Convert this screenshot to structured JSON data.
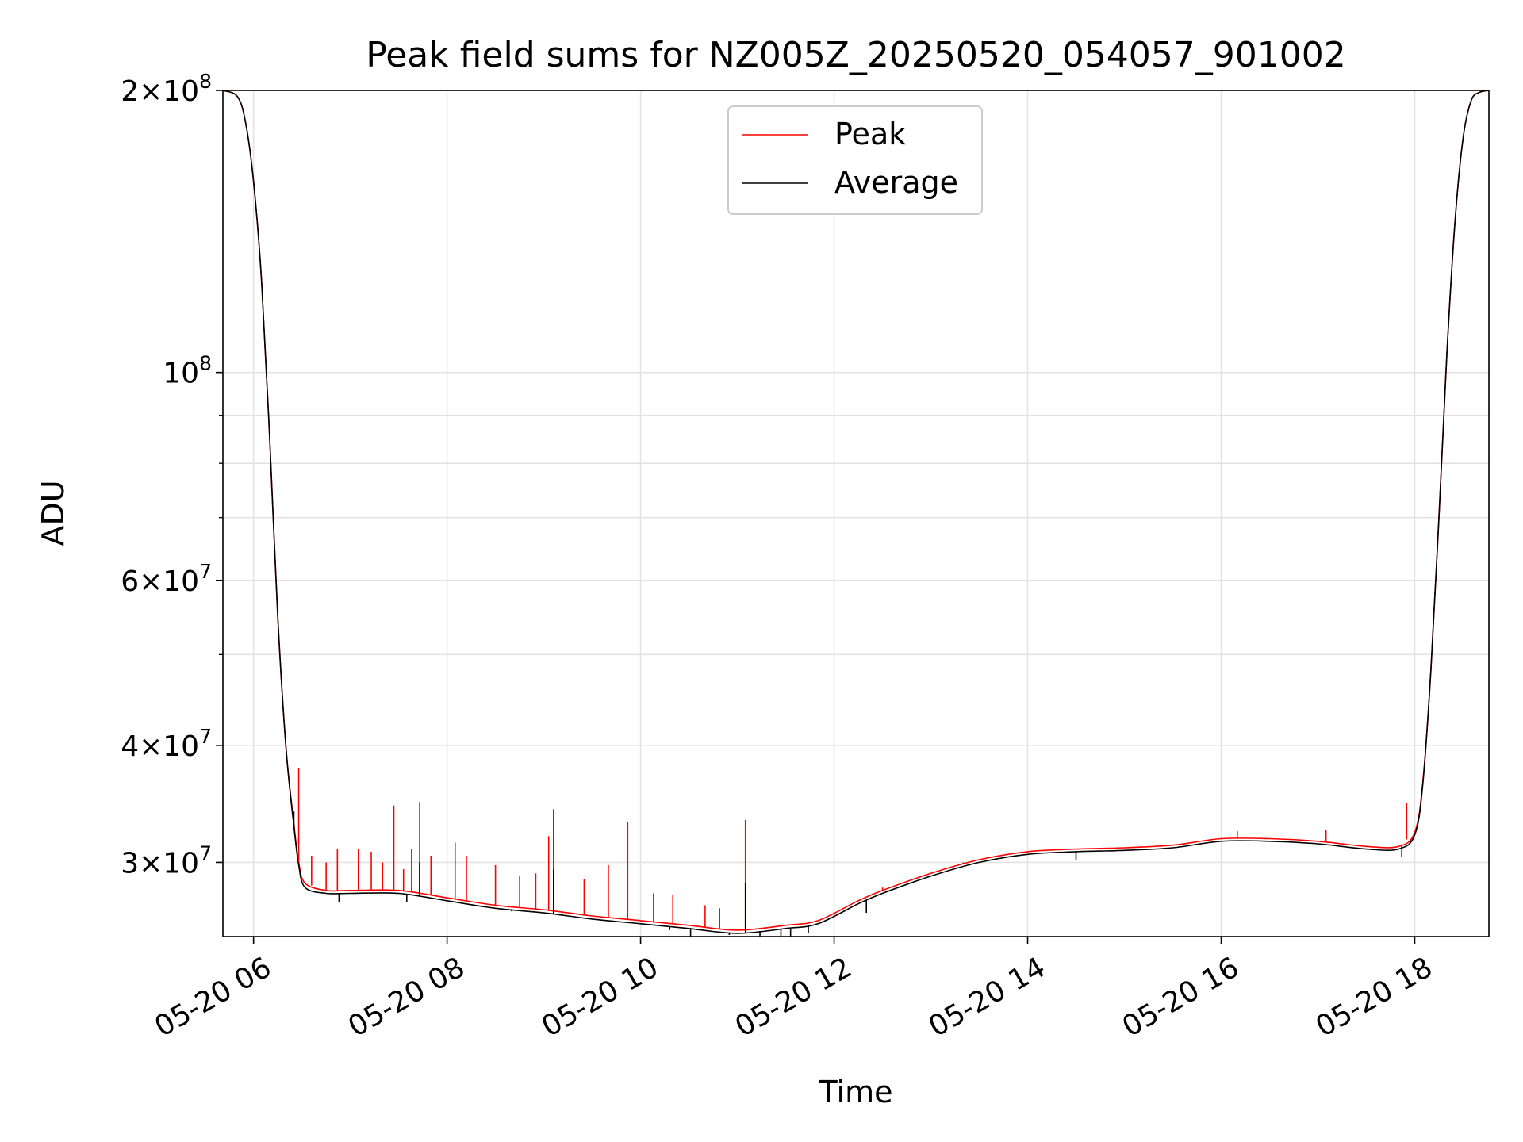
{
  "chart_data": {
    "type": "line",
    "title": "Peak field sums for NZ005Z_20250520_054057_901002",
    "xlabel": "Time",
    "ylabel": "ADU",
    "x_scale": "time",
    "y_scale": "log",
    "xlim": [
      "2025-05-20 05:41",
      "2025-05-20 18:46"
    ],
    "ylim": [
      25000000,
      200000000
    ],
    "grid": true,
    "legend_position": "top-center",
    "x_tick_labels": [
      "05-20 06",
      "05-20 08",
      "05-20 10",
      "05-20 12",
      "05-20 14",
      "05-20 16",
      "05-20 18"
    ],
    "x_ticks": [
      "2025-05-20 06:00",
      "2025-05-20 08:00",
      "2025-05-20 10:00",
      "2025-05-20 12:00",
      "2025-05-20 14:00",
      "2025-05-20 16:00",
      "2025-05-20 18:00"
    ],
    "y_tick_labels": [
      {
        "value": 30000000,
        "mantissa": "3",
        "exp": "7"
      },
      {
        "value": 40000000,
        "mantissa": "4",
        "exp": "7"
      },
      {
        "value": 60000000,
        "mantissa": "6",
        "exp": "7"
      },
      {
        "value": 100000000,
        "mantissa": "",
        "exp": "8"
      },
      {
        "value": 200000000,
        "mantissa": "2",
        "exp": "8"
      }
    ],
    "y_minor_ticks": [
      50000000,
      70000000,
      80000000,
      90000000
    ],
    "series": [
      {
        "name": "Peak",
        "color": "#ff0000",
        "x": [
          "2025-05-20 05:41",
          "2025-05-20 05:50",
          "2025-05-20 05:55",
          "2025-05-20 06:00",
          "2025-05-20 06:05",
          "2025-05-20 06:10",
          "2025-05-20 06:15",
          "2025-05-20 06:20",
          "2025-05-20 06:25",
          "2025-05-20 06:28",
          "2025-05-20 06:32",
          "2025-05-20 06:45",
          "2025-05-20 07:00",
          "2025-05-20 07:30",
          "2025-05-20 08:00",
          "2025-05-20 08:30",
          "2025-05-20 09:00",
          "2025-05-20 09:30",
          "2025-05-20 10:00",
          "2025-05-20 10:30",
          "2025-05-20 11:00",
          "2025-05-20 11:30",
          "2025-05-20 11:50",
          "2025-05-20 12:15",
          "2025-05-20 12:30",
          "2025-05-20 13:00",
          "2025-05-20 13:30",
          "2025-05-20 14:00",
          "2025-05-20 14:30",
          "2025-05-20 15:00",
          "2025-05-20 15:30",
          "2025-05-20 16:00",
          "2025-05-20 16:30",
          "2025-05-20 17:00",
          "2025-05-20 17:30",
          "2025-05-20 17:50",
          "2025-05-20 18:00",
          "2025-05-20 18:05",
          "2025-05-20 18:10",
          "2025-05-20 18:15",
          "2025-05-20 18:20",
          "2025-05-20 18:25",
          "2025-05-20 18:30",
          "2025-05-20 18:35",
          "2025-05-20 18:40",
          "2025-05-20 18:46"
        ],
        "y": [
          200000000,
          197000000,
          185000000,
          160000000,
          125000000,
          85000000,
          55000000,
          40000000,
          33000000,
          30000000,
          28500000,
          28000000,
          28000000,
          28000000,
          27500000,
          27000000,
          26700000,
          26300000,
          26000000,
          25700000,
          25400000,
          25700000,
          26000000,
          27300000,
          28000000,
          29200000,
          30200000,
          30800000,
          31000000,
          31100000,
          31300000,
          31800000,
          31800000,
          31600000,
          31200000,
          31200000,
          32300000,
          36500000,
          48000000,
          70000000,
          105000000,
          145000000,
          178000000,
          195000000,
          199000000,
          200000000
        ]
      },
      {
        "name": "Average",
        "color": "#000000",
        "x": [
          "2025-05-20 05:41",
          "2025-05-20 05:50",
          "2025-05-20 05:55",
          "2025-05-20 06:00",
          "2025-05-20 06:05",
          "2025-05-20 06:10",
          "2025-05-20 06:15",
          "2025-05-20 06:20",
          "2025-05-20 06:25",
          "2025-05-20 06:28",
          "2025-05-20 06:32",
          "2025-05-20 06:45",
          "2025-05-20 07:00",
          "2025-05-20 07:30",
          "2025-05-20 08:00",
          "2025-05-20 08:30",
          "2025-05-20 09:00",
          "2025-05-20 09:30",
          "2025-05-20 10:00",
          "2025-05-20 10:30",
          "2025-05-20 11:00",
          "2025-05-20 11:30",
          "2025-05-20 11:50",
          "2025-05-20 12:15",
          "2025-05-20 12:30",
          "2025-05-20 13:00",
          "2025-05-20 13:30",
          "2025-05-20 14:00",
          "2025-05-20 14:30",
          "2025-05-20 15:00",
          "2025-05-20 15:30",
          "2025-05-20 16:00",
          "2025-05-20 16:30",
          "2025-05-20 17:00",
          "2025-05-20 17:30",
          "2025-05-20 17:50",
          "2025-05-20 18:00",
          "2025-05-20 18:05",
          "2025-05-20 18:10",
          "2025-05-20 18:15",
          "2025-05-20 18:20",
          "2025-05-20 18:25",
          "2025-05-20 18:30",
          "2025-05-20 18:35",
          "2025-05-20 18:40",
          "2025-05-20 18:46"
        ],
        "y": [
          200000000,
          197000000,
          185000000,
          160000000,
          125000000,
          85000000,
          55000000,
          40000000,
          32800000,
          29800000,
          28200000,
          27800000,
          27800000,
          27800000,
          27300000,
          26800000,
          26500000,
          26100000,
          25800000,
          25500000,
          25200000,
          25500000,
          25800000,
          27100000,
          27800000,
          29000000,
          30000000,
          30600000,
          30800000,
          30900000,
          31100000,
          31600000,
          31600000,
          31400000,
          31000000,
          31000000,
          32100000,
          36300000,
          48000000,
          70000000,
          105000000,
          145000000,
          178000000,
          195000000,
          199000000,
          200000000
        ]
      }
    ],
    "spikes": [
      {
        "series": "Peak",
        "x": "2025-05-20 06:28",
        "y": 37800000
      },
      {
        "series": "Peak",
        "x": "2025-05-20 06:36",
        "y": 30500000
      },
      {
        "series": "Peak",
        "x": "2025-05-20 06:45",
        "y": 30000000
      },
      {
        "series": "Peak",
        "x": "2025-05-20 06:52",
        "y": 31000000
      },
      {
        "series": "Peak",
        "x": "2025-05-20 07:05",
        "y": 31000000
      },
      {
        "series": "Peak",
        "x": "2025-05-20 07:13",
        "y": 30800000
      },
      {
        "series": "Peak",
        "x": "2025-05-20 07:20",
        "y": 30000000
      },
      {
        "series": "Peak",
        "x": "2025-05-20 07:27",
        "y": 34500000
      },
      {
        "series": "Peak",
        "x": "2025-05-20 07:33",
        "y": 29500000
      },
      {
        "series": "Peak",
        "x": "2025-05-20 07:38",
        "y": 31000000
      },
      {
        "series": "Peak",
        "x": "2025-05-20 07:43",
        "y": 34800000
      },
      {
        "series": "Peak",
        "x": "2025-05-20 07:50",
        "y": 30500000
      },
      {
        "series": "Peak",
        "x": "2025-05-20 08:05",
        "y": 31500000
      },
      {
        "series": "Peak",
        "x": "2025-05-20 08:12",
        "y": 30500000
      },
      {
        "series": "Peak",
        "x": "2025-05-20 08:30",
        "y": 29800000
      },
      {
        "series": "Peak",
        "x": "2025-05-20 08:45",
        "y": 29000000
      },
      {
        "series": "Peak",
        "x": "2025-05-20 08:55",
        "y": 29200000
      },
      {
        "series": "Peak",
        "x": "2025-05-20 09:03",
        "y": 32000000
      },
      {
        "series": "Peak",
        "x": "2025-05-20 09:06",
        "y": 34200000
      },
      {
        "series": "Peak",
        "x": "2025-05-20 09:25",
        "y": 28800000
      },
      {
        "series": "Peak",
        "x": "2025-05-20 09:40",
        "y": 29800000
      },
      {
        "series": "Peak",
        "x": "2025-05-20 09:52",
        "y": 33100000
      },
      {
        "series": "Peak",
        "x": "2025-05-20 10:08",
        "y": 27800000
      },
      {
        "series": "Peak",
        "x": "2025-05-20 10:20",
        "y": 27700000
      },
      {
        "series": "Peak",
        "x": "2025-05-20 10:40",
        "y": 27000000
      },
      {
        "series": "Peak",
        "x": "2025-05-20 10:49",
        "y": 26800000
      },
      {
        "series": "Peak",
        "x": "2025-05-20 11:05",
        "y": 33300000
      },
      {
        "series": "Peak",
        "x": "2025-05-20 12:00",
        "y": 26200000
      },
      {
        "series": "Peak",
        "x": "2025-05-20 12:30",
        "y": 28200000
      },
      {
        "series": "Peak",
        "x": "2025-05-20 13:20",
        "y": 30000000
      },
      {
        "series": "Peak",
        "x": "2025-05-20 14:20",
        "y": 30900000
      },
      {
        "series": "Peak",
        "x": "2025-05-20 16:10",
        "y": 32400000
      },
      {
        "series": "Peak",
        "x": "2025-05-20 17:05",
        "y": 32500000
      },
      {
        "series": "Peak",
        "x": "2025-05-20 17:55",
        "y": 34700000
      },
      {
        "series": "Average",
        "x": "2025-05-20 06:25",
        "y": 34000000
      },
      {
        "series": "Average",
        "x": "2025-05-20 07:43",
        "y": 30000000
      },
      {
        "series": "Average",
        "x": "2025-05-20 09:06",
        "y": 29500000
      },
      {
        "series": "Average",
        "x": "2025-05-20 11:05",
        "y": 28500000
      }
    ],
    "dips": [
      {
        "series": "Average",
        "x": "2025-05-20 06:53",
        "y": 27200000
      },
      {
        "series": "Average",
        "x": "2025-05-20 07:35",
        "y": 27200000
      },
      {
        "series": "Average",
        "x": "2025-05-20 08:40",
        "y": 26600000
      },
      {
        "series": "Average",
        "x": "2025-05-20 10:18",
        "y": 25400000
      },
      {
        "series": "Average",
        "x": "2025-05-20 10:31",
        "y": 25000000
      },
      {
        "series": "Average",
        "x": "2025-05-20 10:55",
        "y": 25100000
      },
      {
        "series": "Average",
        "x": "2025-05-20 11:14",
        "y": 25000000
      },
      {
        "series": "Average",
        "x": "2025-05-20 11:27",
        "y": 25000000
      },
      {
        "series": "Average",
        "x": "2025-05-20 11:33",
        "y": 25000000
      },
      {
        "series": "Average",
        "x": "2025-05-20 11:44",
        "y": 25200000
      },
      {
        "series": "Average",
        "x": "2025-05-20 12:20",
        "y": 26500000
      },
      {
        "series": "Average",
        "x": "2025-05-20 14:30",
        "y": 30200000
      },
      {
        "series": "Average",
        "x": "2025-05-20 17:52",
        "y": 30400000
      }
    ]
  }
}
